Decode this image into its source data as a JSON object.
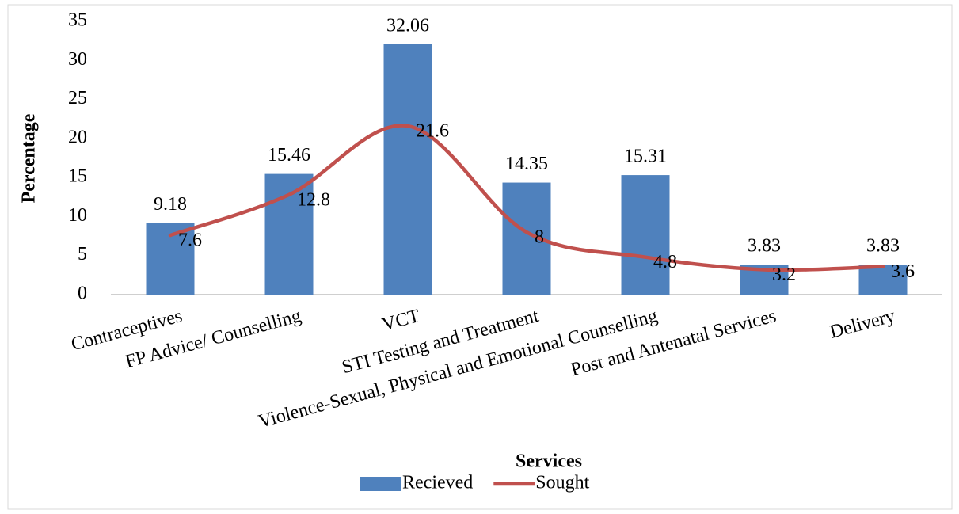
{
  "chart_data": {
    "type": "bar",
    "x_label": "Services",
    "y_label": "Percentage",
    "categories": [
      "Contraceptives",
      "FP Advice/ Counselling",
      "VCT",
      "STI Testing and Treatment",
      "Violence-Sexual, Physical and Emotional Counselling",
      "Post and Antenatal Services",
      "Delivery"
    ],
    "series": [
      {
        "name": "Recieved",
        "type": "bar",
        "color": "#4f81bd",
        "values": [
          9.18,
          15.46,
          32.06,
          14.35,
          15.31,
          3.83,
          3.83
        ]
      },
      {
        "name": "Sought",
        "type": "line",
        "color": "#c0504d",
        "values": [
          7.6,
          12.8,
          21.6,
          8,
          4.8,
          3.2,
          3.6
        ]
      }
    ],
    "ylim": [
      0,
      35
    ],
    "yticks": [
      0,
      5,
      10,
      15,
      20,
      25,
      30,
      35
    ],
    "grid": false,
    "legend": "bottom"
  }
}
